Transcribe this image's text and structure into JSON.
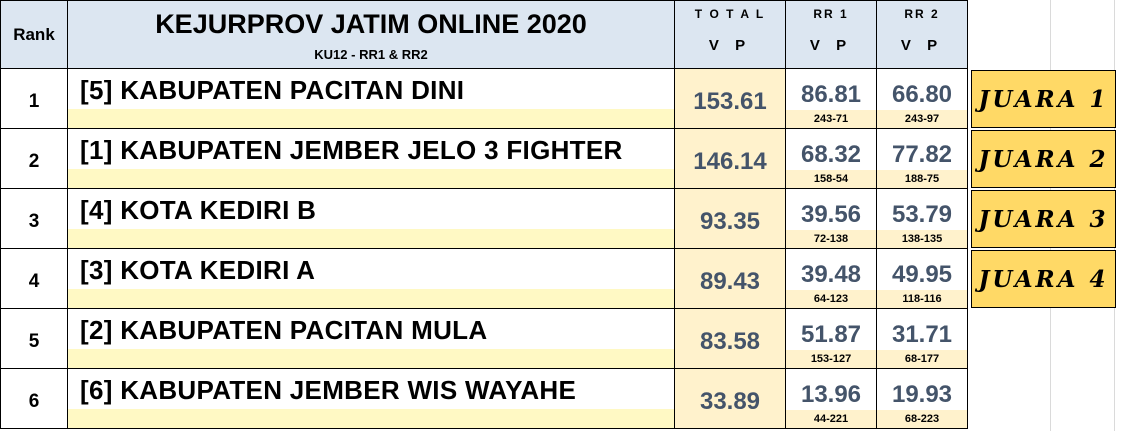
{
  "header": {
    "rank_label": "Rank",
    "title": "KEJURPROV JATIM ONLINE 2020",
    "subtitle": "KU12 - RR1 & RR2",
    "total_label": "T O T A L",
    "total_unit": "V P",
    "rr1_label": "RR 1",
    "rr1_unit": "V P",
    "rr2_label": "RR 2",
    "rr2_unit": "V P"
  },
  "rows": [
    {
      "rank": "1",
      "team": "[5] KABUPATEN PACITAN DINI",
      "total": "153.61",
      "rr1": "86.81",
      "rr1_score": "243-71",
      "rr2": "66.80",
      "rr2_score": "243-97",
      "award": "JUARA 1"
    },
    {
      "rank": "2",
      "team": "[1] KABUPATEN JEMBER JELO 3 FIGHTER",
      "total": "146.14",
      "rr1": "68.32",
      "rr1_score": "158-54",
      "rr2": "77.82",
      "rr2_score": "188-75",
      "award": "JUARA 2"
    },
    {
      "rank": "3",
      "team": "[4] KOTA KEDIRI B",
      "total": "93.35",
      "rr1": "39.56",
      "rr1_score": "72-138",
      "rr2": "53.79",
      "rr2_score": "138-135",
      "award": "JUARA 3"
    },
    {
      "rank": "4",
      "team": "[3] KOTA KEDIRI A",
      "total": "89.43",
      "rr1": "39.48",
      "rr1_score": "64-123",
      "rr2": "49.95",
      "rr2_score": "118-116",
      "award": "JUARA 4"
    },
    {
      "rank": "5",
      "team": "[2] KABUPATEN PACITAN MULA",
      "total": "83.58",
      "rr1": "51.87",
      "rr1_score": "153-127",
      "rr2": "31.71",
      "rr2_score": "68-177",
      "award": ""
    },
    {
      "rank": "6",
      "team": "[6] KABUPATEN JEMBER WIS WAYAHE",
      "total": "33.89",
      "rr1": "13.96",
      "rr1_score": "44-221",
      "rr2": "19.93",
      "rr2_score": "68-223",
      "award": ""
    }
  ]
}
